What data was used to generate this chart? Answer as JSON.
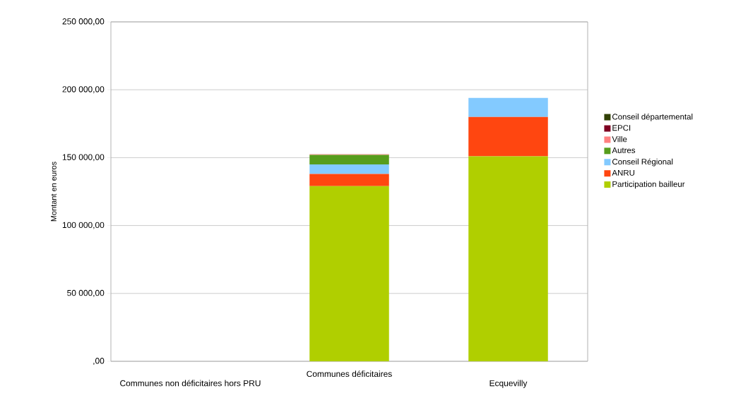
{
  "chart_data": {
    "type": "bar",
    "stacked": true,
    "ylabel": "Montant en euros",
    "categories": [
      "Communes non déficitaires hors PRU",
      "Communes déficitaires",
      "Ecquevilly"
    ],
    "series": [
      {
        "name": "Participation bailleur",
        "color": "#b0cf00",
        "values": [
          0,
          129000,
          151000
        ]
      },
      {
        "name": "ANRU",
        "color": "#ff4610",
        "values": [
          0,
          9000,
          29000
        ]
      },
      {
        "name": "Conseil Régional",
        "color": "#83caff",
        "values": [
          0,
          7000,
          14000
        ]
      },
      {
        "name": "Autres",
        "color": "#579d1c",
        "values": [
          0,
          7000,
          0
        ]
      },
      {
        "name": "Ville",
        "color": "#ff8080",
        "values": [
          0,
          500,
          0
        ]
      },
      {
        "name": "EPCI",
        "color": "#7e0021",
        "values": [
          0,
          0,
          0
        ]
      },
      {
        "name": "Conseil départemental",
        "color": "#314004",
        "values": [
          0,
          0,
          0
        ]
      }
    ],
    "ylim": [
      0,
      250000
    ],
    "yticks": [
      {
        "value": 0,
        "label": ",00"
      },
      {
        "value": 50000,
        "label": "50 000,00"
      },
      {
        "value": 100000,
        "label": "100 000,00"
      },
      {
        "value": 150000,
        "label": "150 000,00"
      },
      {
        "value": 200000,
        "label": "200 000,00"
      },
      {
        "value": 250000,
        "label": "250 000,00"
      }
    ],
    "grid": "y",
    "legend": "right"
  }
}
